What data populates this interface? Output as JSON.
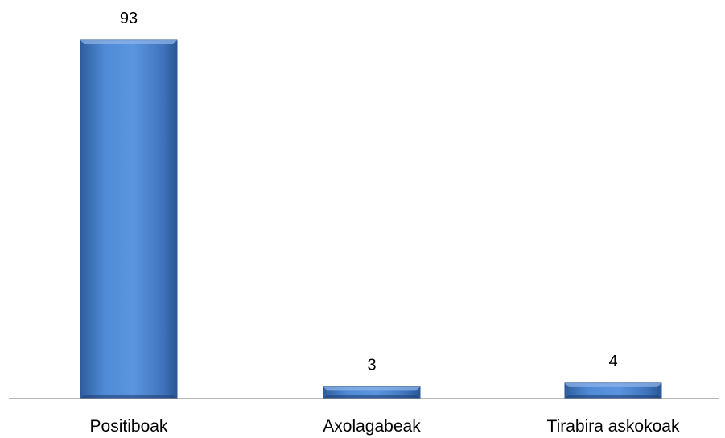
{
  "chart_data": {
    "type": "bar",
    "title": "",
    "xlabel": "",
    "ylabel": "",
    "categories": [
      "Positiboak",
      "Axolagabeak",
      "Tirabira askokoak"
    ],
    "values": [
      93,
      3,
      4
    ],
    "ylim": [
      0,
      93
    ],
    "grid": false,
    "legend": "none",
    "show_data_labels": true,
    "bar_color": "#4F81BD"
  }
}
